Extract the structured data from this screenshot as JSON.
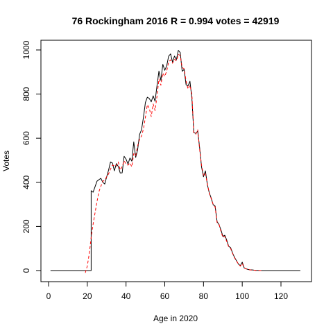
{
  "chart_data": {
    "type": "line",
    "title": "76 Rockingham 2016 R = 0.994 votes = 42919",
    "xlabel": "Age in 2020",
    "ylabel": "Votes",
    "xlim": [
      0,
      130
    ],
    "ylim": [
      0,
      1000
    ],
    "x_ticks": [
      0,
      20,
      40,
      60,
      80,
      100,
      120
    ],
    "y_ticks": [
      0,
      200,
      400,
      600,
      800,
      1000
    ],
    "grid": false,
    "legend": "none",
    "series": [
      {
        "style": "solid",
        "color": "#000000",
        "points": [
          [
            1,
            0
          ],
          [
            22,
            0
          ],
          [
            22,
            362
          ],
          [
            23,
            355
          ],
          [
            24,
            380
          ],
          [
            25,
            405
          ],
          [
            26,
            412
          ],
          [
            27,
            418
          ],
          [
            28,
            400
          ],
          [
            29,
            392
          ],
          [
            30,
            425
          ],
          [
            31,
            455
          ],
          [
            32,
            492
          ],
          [
            33,
            487
          ],
          [
            34,
            452
          ],
          [
            35,
            485
          ],
          [
            36,
            472
          ],
          [
            37,
            442
          ],
          [
            38,
            443
          ],
          [
            39,
            518
          ],
          [
            40,
            505
          ],
          [
            41,
            483
          ],
          [
            42,
            510
          ],
          [
            43,
            496
          ],
          [
            44,
            583
          ],
          [
            45,
            513
          ],
          [
            46,
            548
          ],
          [
            47,
            617
          ],
          [
            48,
            638
          ],
          [
            49,
            695
          ],
          [
            50,
            762
          ],
          [
            51,
            786
          ],
          [
            52,
            780
          ],
          [
            53,
            765
          ],
          [
            54,
            792
          ],
          [
            55,
            767
          ],
          [
            56,
            838
          ],
          [
            57,
            904
          ],
          [
            58,
            862
          ],
          [
            59,
            935
          ],
          [
            60,
            908
          ],
          [
            61,
            928
          ],
          [
            62,
            972
          ],
          [
            63,
            982
          ],
          [
            64,
            945
          ],
          [
            65,
            972
          ],
          [
            66,
            956
          ],
          [
            67,
            998
          ],
          [
            68,
            988
          ],
          [
            69,
            903
          ],
          [
            70,
            912
          ],
          [
            71,
            842
          ],
          [
            72,
            837
          ],
          [
            73,
            858
          ],
          [
            74,
            780
          ],
          [
            75,
            625
          ],
          [
            76,
            622
          ],
          [
            77,
            632
          ],
          [
            78,
            556
          ],
          [
            79,
            470
          ],
          [
            80,
            425
          ],
          [
            81,
            452
          ],
          [
            82,
            390
          ],
          [
            83,
            352
          ],
          [
            84,
            328
          ],
          [
            85,
            298
          ],
          [
            86,
            292
          ],
          [
            87,
            222
          ],
          [
            88,
            208
          ],
          [
            89,
            184
          ],
          [
            90,
            155
          ],
          [
            91,
            160
          ],
          [
            92,
            138
          ],
          [
            93,
            110
          ],
          [
            94,
            104
          ],
          [
            95,
            80
          ],
          [
            96,
            60
          ],
          [
            97,
            45
          ],
          [
            98,
            30
          ],
          [
            99,
            22
          ],
          [
            100,
            38
          ],
          [
            101,
            12
          ],
          [
            102,
            8
          ],
          [
            103,
            5
          ],
          [
            104,
            3
          ],
          [
            105,
            3
          ],
          [
            106,
            2
          ],
          [
            107,
            1
          ],
          [
            108,
            1
          ],
          [
            110,
            0
          ],
          [
            130,
            0
          ]
        ]
      },
      {
        "style": "dashed",
        "color": "#ff0000",
        "points": [
          [
            19,
            -10
          ],
          [
            20,
            20
          ],
          [
            21,
            75
          ],
          [
            22,
            150
          ],
          [
            23,
            210
          ],
          [
            24,
            262
          ],
          [
            25,
            312
          ],
          [
            26,
            358
          ],
          [
            27,
            382
          ],
          [
            28,
            405
          ],
          [
            29,
            410
          ],
          [
            30,
            425
          ],
          [
            31,
            438
          ],
          [
            32,
            460
          ],
          [
            33,
            478
          ],
          [
            34,
            475
          ],
          [
            35,
            472
          ],
          [
            36,
            492
          ],
          [
            37,
            455
          ],
          [
            38,
            472
          ],
          [
            39,
            498
          ],
          [
            40,
            482
          ],
          [
            41,
            478
          ],
          [
            42,
            488
          ],
          [
            43,
            470
          ],
          [
            44,
            530
          ],
          [
            45,
            520
          ],
          [
            46,
            565
          ],
          [
            47,
            595
          ],
          [
            48,
            610
          ],
          [
            49,
            642
          ],
          [
            50,
            695
          ],
          [
            51,
            752
          ],
          [
            52,
            735
          ],
          [
            53,
            698
          ],
          [
            54,
            755
          ],
          [
            55,
            725
          ],
          [
            56,
            790
          ],
          [
            57,
            868
          ],
          [
            58,
            840
          ],
          [
            59,
            895
          ],
          [
            60,
            880
          ],
          [
            61,
            905
          ],
          [
            62,
            945
          ],
          [
            63,
            955
          ],
          [
            64,
            940
          ],
          [
            65,
            958
          ],
          [
            66,
            950
          ],
          [
            67,
            980
          ],
          [
            68,
            975
          ],
          [
            69,
            920
          ],
          [
            70,
            915
          ],
          [
            71,
            860
          ],
          [
            72,
            822
          ],
          [
            73,
            840
          ],
          [
            74,
            800
          ],
          [
            75,
            622
          ],
          [
            76,
            618
          ],
          [
            77,
            638
          ],
          [
            78,
            548
          ],
          [
            79,
            478
          ],
          [
            80,
            432
          ],
          [
            81,
            440
          ],
          [
            82,
            392
          ],
          [
            83,
            350
          ],
          [
            84,
            325
          ],
          [
            85,
            300
          ],
          [
            86,
            288
          ],
          [
            87,
            218
          ],
          [
            88,
            210
          ],
          [
            89,
            178
          ],
          [
            90,
            150
          ],
          [
            91,
            155
          ],
          [
            92,
            132
          ],
          [
            93,
            108
          ],
          [
            94,
            100
          ],
          [
            95,
            78
          ],
          [
            96,
            58
          ],
          [
            97,
            44
          ],
          [
            98,
            30
          ],
          [
            99,
            20
          ],
          [
            100,
            32
          ],
          [
            101,
            12
          ],
          [
            102,
            8
          ],
          [
            103,
            5
          ],
          [
            104,
            3
          ],
          [
            105,
            2
          ],
          [
            106,
            2
          ],
          [
            107,
            1
          ],
          [
            108,
            0
          ],
          [
            110,
            0
          ]
        ]
      }
    ]
  }
}
